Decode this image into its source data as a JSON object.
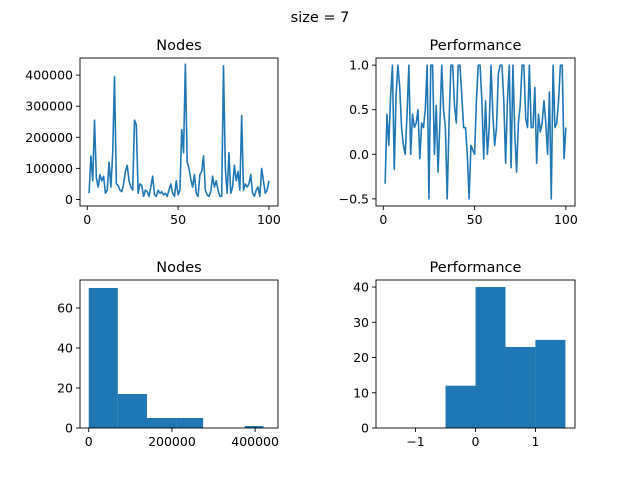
{
  "figure": {
    "suptitle": "size = 7"
  },
  "colors": {
    "series": "#1f77b4",
    "axes": "#000000",
    "background": "#ffffff"
  },
  "chart_data": [
    {
      "type": "line",
      "title": "Nodes",
      "xlim": [
        -4,
        105
      ],
      "ylim": [
        -21000,
        455000
      ],
      "xticks": [
        0,
        50,
        100
      ],
      "yticks": [
        0,
        100000,
        200000,
        300000,
        400000
      ],
      "x": [
        1,
        2,
        3,
        4,
        5,
        6,
        7,
        8,
        9,
        10,
        11,
        12,
        13,
        14,
        15,
        16,
        17,
        18,
        19,
        20,
        21,
        22,
        23,
        24,
        25,
        26,
        27,
        28,
        29,
        30,
        31,
        32,
        33,
        34,
        35,
        36,
        37,
        38,
        39,
        40,
        41,
        42,
        43,
        44,
        45,
        46,
        47,
        48,
        49,
        50,
        51,
        52,
        53,
        54,
        55,
        56,
        57,
        58,
        59,
        60,
        61,
        62,
        63,
        64,
        65,
        66,
        67,
        68,
        69,
        70,
        71,
        72,
        73,
        74,
        75,
        76,
        77,
        78,
        79,
        80,
        81,
        82,
        83,
        84,
        85,
        86,
        87,
        88,
        89,
        90,
        91,
        92,
        93,
        94,
        95,
        96,
        97,
        98,
        99,
        100
      ],
      "y": [
        20000,
        140000,
        60000,
        255000,
        70000,
        40000,
        80000,
        60000,
        75000,
        20000,
        30000,
        120000,
        40000,
        150000,
        395000,
        50000,
        45000,
        30000,
        25000,
        50000,
        90000,
        110000,
        60000,
        40000,
        30000,
        255000,
        240000,
        20000,
        50000,
        45000,
        10000,
        30000,
        25000,
        10000,
        40000,
        75000,
        15000,
        10000,
        30000,
        20000,
        25000,
        15000,
        20000,
        10000,
        30000,
        50000,
        20000,
        10000,
        60000,
        15000,
        30000,
        225000,
        150000,
        435000,
        120000,
        100000,
        65000,
        40000,
        80000,
        20000,
        10000,
        80000,
        90000,
        140000,
        30000,
        15000,
        10000,
        25000,
        75000,
        40000,
        60000,
        30000,
        10000,
        10000,
        430000,
        100000,
        20000,
        150000,
        20000,
        40000,
        110000,
        60000,
        90000,
        30000,
        270000,
        30000,
        50000,
        40000,
        50000,
        80000,
        20000,
        10000,
        30000,
        40000,
        10000,
        100000,
        60000,
        20000,
        30000,
        60000
      ]
    },
    {
      "type": "line",
      "title": "Performance",
      "xlim": [
        -4,
        105
      ],
      "ylim": [
        -0.58,
        1.08
      ],
      "xticks": [
        0,
        50,
        100
      ],
      "yticks": [
        -0.5,
        0.0,
        0.5,
        1.0
      ],
      "x": [
        1,
        2,
        3,
        4,
        5,
        6,
        7,
        8,
        9,
        10,
        11,
        12,
        13,
        14,
        15,
        16,
        17,
        18,
        19,
        20,
        21,
        22,
        23,
        24,
        25,
        26,
        27,
        28,
        29,
        30,
        31,
        32,
        33,
        34,
        35,
        36,
        37,
        38,
        39,
        40,
        41,
        42,
        43,
        44,
        45,
        46,
        47,
        48,
        49,
        50,
        51,
        52,
        53,
        54,
        55,
        56,
        57,
        58,
        59,
        60,
        61,
        62,
        63,
        64,
        65,
        66,
        67,
        68,
        69,
        70,
        71,
        72,
        73,
        74,
        75,
        76,
        77,
        78,
        79,
        80,
        81,
        82,
        83,
        84,
        85,
        86,
        87,
        88,
        89,
        90,
        91,
        92,
        93,
        94,
        95,
        96,
        97,
        98,
        99,
        100
      ],
      "y": [
        -0.33,
        0.45,
        0.1,
        0.65,
        1.0,
        -0.17,
        0.67,
        1.0,
        0.75,
        0.3,
        0.1,
        0.0,
        0.45,
        1.0,
        0.0,
        0.45,
        0.3,
        0.35,
        0.5,
        -0.05,
        0.35,
        0.3,
        0.5,
        1.0,
        -0.5,
        1.0,
        1.0,
        0.0,
        0.55,
        -0.2,
        0.35,
        1.0,
        0.5,
        0.3,
        -0.5,
        0.35,
        1.0,
        1.0,
        0.55,
        0.35,
        1.0,
        1.0,
        0.65,
        0.3,
        0.3,
        0.0,
        -0.5,
        0.1,
        0.05,
        0.0,
        0.6,
        1.0,
        1.0,
        0.6,
        -0.05,
        0.6,
        0.0,
        0.3,
        1.0,
        0.45,
        0.1,
        0.3,
        0.9,
        1.0,
        1.0,
        0.6,
        -0.1,
        0.6,
        1.0,
        -0.15,
        1.0,
        0.25,
        -0.2,
        0.35,
        0.55,
        1.0,
        1.0,
        0.4,
        0.3,
        1.0,
        0.3,
        0.3,
        0.75,
        -0.1,
        0.45,
        0.25,
        0.35,
        0.6,
        0.35,
        0.0,
        0.7,
        -0.5,
        1.0,
        0.3,
        0.35,
        0.6,
        1.0,
        1.0,
        -0.05,
        0.3
      ]
    },
    {
      "type": "bar",
      "title": "Nodes",
      "xlim": [
        -21000,
        455000
      ],
      "ylim": [
        0,
        74
      ],
      "xticks": [
        0,
        200000,
        400000
      ],
      "yticks": [
        0,
        20,
        40,
        60
      ],
      "bins": [
        [
          0,
          70000
        ],
        [
          70000,
          140000
        ],
        [
          140000,
          210000
        ],
        [
          210000,
          275000
        ],
        [
          375000,
          420000
        ]
      ],
      "values": [
        70,
        17,
        5,
        5,
        1
      ]
    },
    {
      "type": "bar",
      "title": "Performance",
      "xlim": [
        -1.66,
        1.66
      ],
      "ylim": [
        0,
        42
      ],
      "xticks": [
        -1,
        0,
        1
      ],
      "xtick_labels": [
        "−1",
        "0",
        "1"
      ],
      "yticks": [
        0,
        10,
        20,
        30,
        40
      ],
      "bins": [
        [
          -0.5,
          0.0
        ],
        [
          0.0,
          0.5
        ],
        [
          0.5,
          1.0
        ],
        [
          1.0,
          1.5
        ]
      ],
      "values": [
        12,
        40,
        23,
        25
      ]
    }
  ]
}
